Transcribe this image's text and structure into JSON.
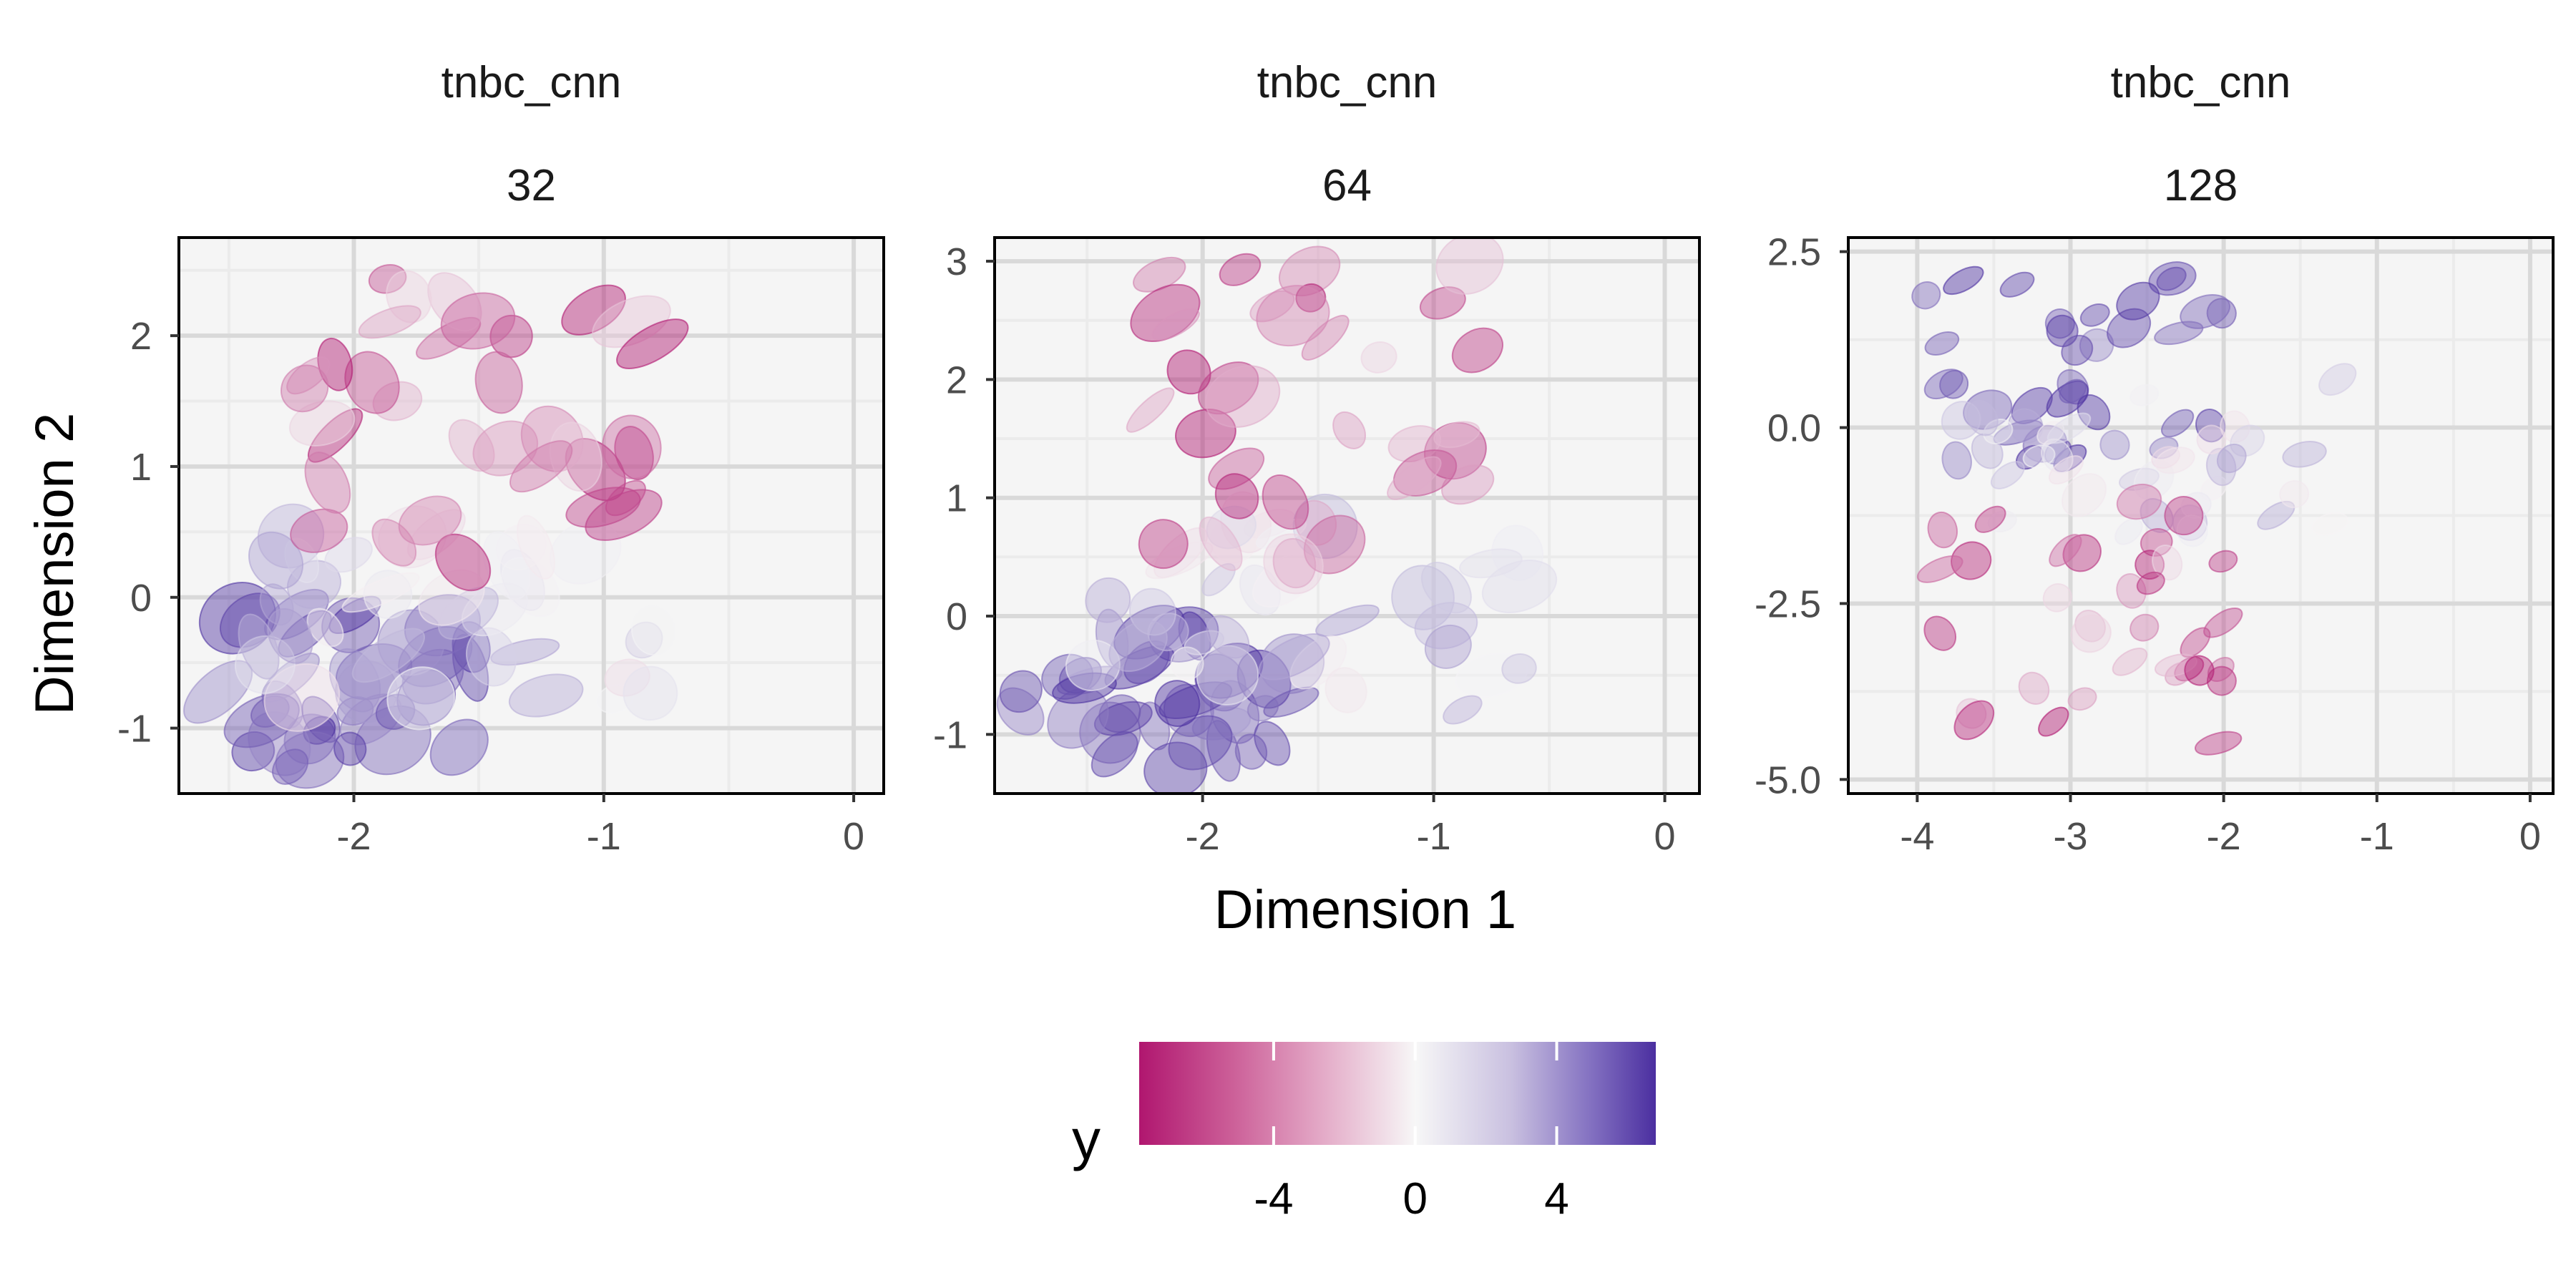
{
  "figure": {
    "xlabel": "Dimension 1",
    "ylabel": "Dimension 2"
  },
  "legend": {
    "title": "y",
    "ticks": [
      -4,
      0,
      4
    ],
    "range": [
      -7.8,
      6.8
    ],
    "colors": {
      "low": "#B0166F",
      "mid": "#F7F7F7",
      "high": "#4B2FA0"
    }
  },
  "colors": {
    "panel_bg": "#F5F5F5",
    "grid_minor": "#EBEBEB",
    "grid_major": "#D9D9D9",
    "border": "#000000"
  },
  "chart_data": [
    {
      "type": "scatter",
      "marker": "ellipse",
      "strip_top": "tnbc_cnn",
      "strip_bottom": "32",
      "xlim": [
        -2.7,
        0.12
      ],
      "ylim": [
        -1.5,
        2.75
      ],
      "xticks": [
        -2,
        -1,
        0
      ],
      "yticks": [
        -1,
        0,
        1,
        2
      ],
      "color_variable": "y",
      "grid": true,
      "clusters": [
        {
          "label": "high y (purple)",
          "y_value_range": [
            3,
            7
          ],
          "x_range": [
            -2.6,
            -1.5
          ],
          "y_range": [
            -1.3,
            -0.1
          ]
        },
        {
          "label": "neutral y",
          "y_value_range": [
            -1,
            3
          ],
          "x_range": [
            -2.4,
            -0.8
          ],
          "y_range": [
            -0.8,
            0.6
          ]
        },
        {
          "label": "low y (magenta)",
          "y_value_range": [
            -8,
            -1
          ],
          "x_range": [
            -2.2,
            -0.8
          ],
          "y_range": [
            0.0,
            2.6
          ]
        }
      ]
    },
    {
      "type": "scatter",
      "marker": "ellipse",
      "strip_top": "tnbc_cnn",
      "strip_bottom": "64",
      "xlim": [
        -2.9,
        0.15
      ],
      "ylim": [
        -1.5,
        3.2
      ],
      "xticks": [
        -2,
        -1,
        0
      ],
      "yticks": [
        -1,
        0,
        1,
        2,
        3
      ],
      "color_variable": "y",
      "grid": true,
      "clusters": [
        {
          "label": "high y (purple)",
          "y_value_range": [
            3,
            7
          ],
          "x_range": [
            -2.8,
            -1.6
          ],
          "y_range": [
            -1.3,
            -0.1
          ]
        },
        {
          "label": "neutral y",
          "y_value_range": [
            -1,
            3
          ],
          "x_range": [
            -2.5,
            -0.6
          ],
          "y_range": [
            -0.8,
            0.8
          ]
        },
        {
          "label": "low y (magenta)",
          "y_value_range": [
            -8,
            -1
          ],
          "x_range": [
            -2.3,
            -0.8
          ],
          "y_range": [
            0.3,
            3.0
          ]
        }
      ]
    },
    {
      "type": "scatter",
      "marker": "ellipse",
      "strip_top": "tnbc_cnn",
      "strip_bottom": "128",
      "xlim": [
        -4.45,
        0.15
      ],
      "ylim": [
        -5.2,
        2.7
      ],
      "xticks": [
        -4,
        -3,
        -2,
        -1,
        0
      ],
      "yticks": [
        2.5,
        0.0,
        -2.5,
        -5.0
      ],
      "ytick_labels": [
        "2.5",
        "0.0",
        "-2.5",
        "-5.0"
      ],
      "color_variable": "y",
      "grid": true,
      "clusters": [
        {
          "label": "high y (purple)",
          "y_value_range": [
            3,
            7
          ],
          "x_range": [
            -4.1,
            -2.0
          ],
          "y_range": [
            -0.5,
            2.3
          ]
        },
        {
          "label": "neutral y",
          "y_value_range": [
            -1,
            3
          ],
          "x_range": [
            -3.8,
            -1.2
          ],
          "y_range": [
            -1.5,
            0.8
          ]
        },
        {
          "label": "low y (magenta)",
          "y_value_range": [
            -8,
            -1
          ],
          "x_range": [
            -3.9,
            -2.0
          ],
          "y_range": [
            -4.8,
            -1.0
          ]
        }
      ]
    }
  ]
}
